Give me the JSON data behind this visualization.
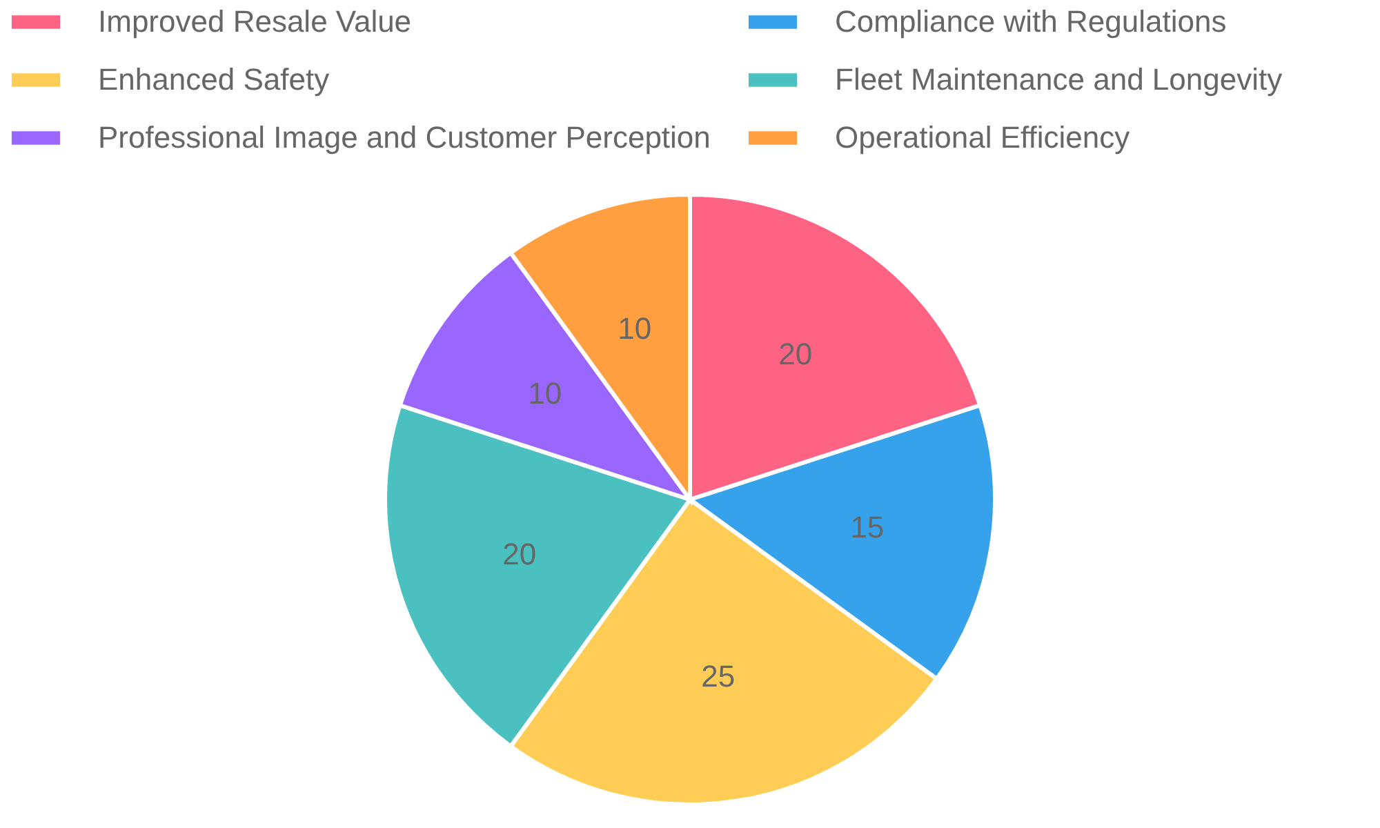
{
  "chart_data": {
    "type": "pie",
    "categories": [
      "Improved Resale Value",
      "Compliance with Regulations",
      "Enhanced Safety",
      "Fleet Maintenance and Longevity",
      "Professional Image and Customer Perception",
      "Operational Efficiency"
    ],
    "values": [
      20,
      15,
      25,
      20,
      10,
      10
    ],
    "colors": [
      "#ff6384",
      "#36a2eb",
      "#ffcd56",
      "#4bc0c0",
      "#9966ff",
      "#ff9f40"
    ],
    "legend": "top",
    "data_labels": true
  }
}
